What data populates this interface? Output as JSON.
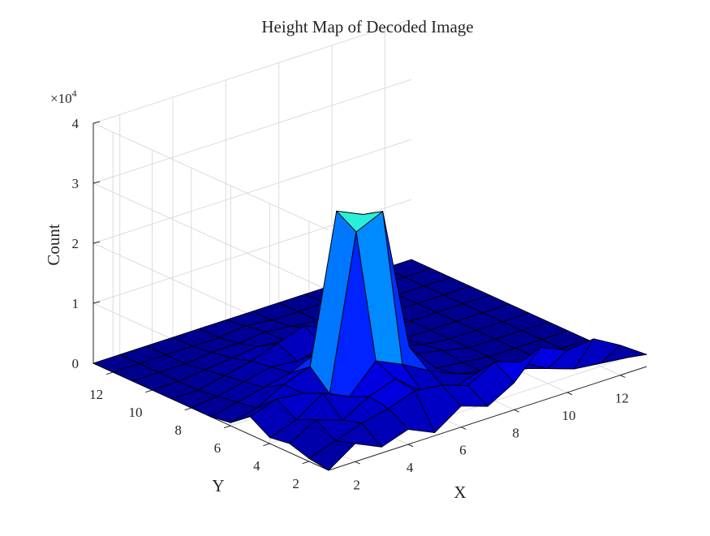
{
  "chart_data": {
    "type": "surface",
    "title": "Height Map of Decoded Image",
    "xlabel": "X",
    "ylabel": "Y",
    "zlabel": "Count",
    "z_exponent_label": "×10",
    "z_exponent_power": "4",
    "x_ticks": [
      "2",
      "4",
      "6",
      "8",
      "10",
      "12"
    ],
    "y_ticks": [
      "2",
      "4",
      "6",
      "8",
      "10",
      "12"
    ],
    "z_ticks": [
      "0",
      "1",
      "2",
      "3",
      "4"
    ],
    "xlim": [
      1,
      13
    ],
    "ylim": [
      1,
      13
    ],
    "zlim": [
      0,
      40000
    ],
    "grid": true,
    "colormap": [
      "#00008f",
      "#0000ff",
      "#0070ff",
      "#00d8ff",
      "#40ffc0"
    ],
    "x": [
      1,
      2,
      3,
      4,
      5,
      6,
      7,
      8,
      9,
      10,
      11,
      12,
      13
    ],
    "y": [
      1,
      2,
      3,
      4,
      5,
      6,
      7,
      8,
      9,
      10,
      11,
      12,
      13
    ],
    "z": [
      [
        0,
        3000,
        1000,
        2500,
        500,
        3500,
        2000,
        4500,
        9000,
        7000,
        7500,
        5000,
        2000
      ],
      [
        500,
        2000,
        3500,
        4500,
        6000,
        5500,
        4000,
        6500,
        5000,
        2500,
        1000,
        500,
        0
      ],
      [
        1500,
        4000,
        2500,
        5000,
        6500,
        3000,
        1500,
        3000,
        2000,
        1000,
        500,
        0,
        0
      ],
      [
        1000,
        2500,
        5500,
        3500,
        8000,
        6000,
        3500,
        1500,
        500,
        0,
        0,
        0,
        0
      ],
      [
        3000,
        4500,
        4000,
        2500,
        28000,
        30000,
        6000,
        1000,
        500,
        0,
        0,
        0,
        0
      ],
      [
        500,
        1500,
        4000,
        5500,
        30000,
        28000,
        4000,
        2000,
        1000,
        0,
        0,
        0,
        0
      ],
      [
        0,
        1000,
        2000,
        3000,
        5000,
        4000,
        3500,
        1500,
        500,
        0,
        0,
        0,
        0
      ],
      [
        0,
        500,
        1500,
        2500,
        2000,
        3000,
        2500,
        1000,
        0,
        0,
        0,
        0,
        0
      ],
      [
        0,
        0,
        1000,
        2000,
        3500,
        5000,
        3000,
        1500,
        500,
        0,
        0,
        0,
        0
      ],
      [
        0,
        0,
        500,
        1000,
        1500,
        1000,
        1500,
        500,
        0,
        0,
        0,
        0,
        0
      ],
      [
        0,
        0,
        0,
        500,
        500,
        1000,
        500,
        0,
        0,
        0,
        0,
        0,
        0
      ],
      [
        0,
        0,
        0,
        0,
        0,
        500,
        0,
        0,
        0,
        0,
        0,
        0,
        0
      ],
      [
        0,
        0,
        0,
        0,
        0,
        0,
        0,
        0,
        0,
        0,
        0,
        0,
        0
      ]
    ]
  }
}
